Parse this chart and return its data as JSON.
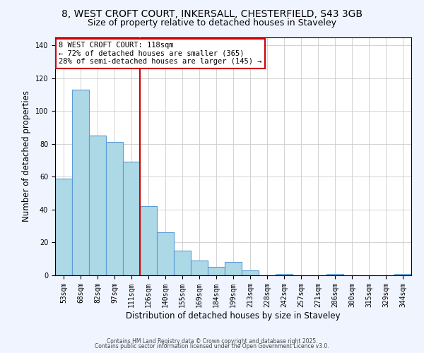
{
  "title1": "8, WEST CROFT COURT, INKERSALL, CHESTERFIELD, S43 3GB",
  "title2": "Size of property relative to detached houses in Staveley",
  "xlabel": "Distribution of detached houses by size in Staveley",
  "ylabel": "Number of detached properties",
  "bar_labels": [
    "53sqm",
    "68sqm",
    "82sqm",
    "97sqm",
    "111sqm",
    "126sqm",
    "140sqm",
    "155sqm",
    "169sqm",
    "184sqm",
    "199sqm",
    "213sqm",
    "228sqm",
    "242sqm",
    "257sqm",
    "271sqm",
    "286sqm",
    "300sqm",
    "315sqm",
    "329sqm",
    "344sqm"
  ],
  "bar_values": [
    59,
    113,
    85,
    81,
    69,
    42,
    26,
    15,
    9,
    5,
    8,
    3,
    0,
    1,
    0,
    0,
    1,
    0,
    0,
    0,
    1
  ],
  "bar_color": "#add8e6",
  "bar_edge_color": "#5b9bd5",
  "vline_x": 4.5,
  "vline_color": "#cc0000",
  "annotation_text": "8 WEST CROFT COURT: 118sqm\n← 72% of detached houses are smaller (365)\n28% of semi-detached houses are larger (145) →",
  "annotation_box_color": "#ffffff",
  "annotation_box_edge_color": "#cc0000",
  "ylim": [
    0,
    145
  ],
  "yticks": [
    0,
    20,
    40,
    60,
    80,
    100,
    120,
    140
  ],
  "footer1": "Contains HM Land Registry data © Crown copyright and database right 2025.",
  "footer2": "Contains public sector information licensed under the Open Government Licence v3.0.",
  "bg_color": "#f0f4ff",
  "plot_bg_color": "#ffffff",
  "title_fontsize": 10,
  "subtitle_fontsize": 9,
  "annot_fontsize": 7.5,
  "xlabel_fontsize": 8.5,
  "ylabel_fontsize": 8.5,
  "tick_fontsize": 7,
  "footer_fontsize": 5.5
}
